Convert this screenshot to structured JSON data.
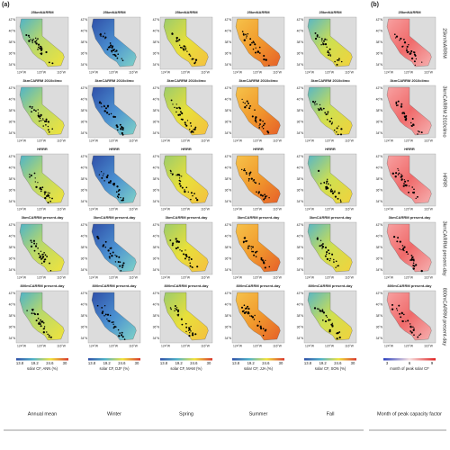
{
  "panel_labels": [
    "(a)",
    "(b)"
  ],
  "rows": [
    "25kmNARRM",
    "3kmCARRM 2010climo",
    "HRRR",
    "3kmCARRM present-day",
    "800mCARRM present-day"
  ],
  "columns": [
    "Annual mean",
    "Winter",
    "Spring",
    "Summer",
    "Fall",
    "Month of peak capacity factor"
  ],
  "latitudes": [
    "42°N",
    "40°N",
    "38°N",
    "36°N",
    "34°N"
  ],
  "longitudes": [
    "124°W",
    "120°W",
    "116°W"
  ],
  "colorbars": [
    {
      "label": "solar CF, ANN (%)",
      "ticks": [
        13.8,
        19.2,
        24.6,
        30
      ]
    },
    {
      "label": "solar CF, DJF (%)",
      "ticks": [
        13.8,
        19.2,
        24.6,
        30
      ]
    },
    {
      "label": "solar CF, MAM (%)",
      "ticks": [
        13.8,
        19.2,
        24.6,
        30
      ]
    },
    {
      "label": "solar CF, JJA (%)",
      "ticks": [
        13.8,
        19.2,
        24.6,
        30
      ]
    },
    {
      "label": "solar CF, SON (%)",
      "ticks": [
        13.8,
        19.2,
        24.6,
        30
      ]
    },
    {
      "label": "month of peak solar CF",
      "ticks": [
        3,
        6,
        9
      ]
    }
  ]
}
